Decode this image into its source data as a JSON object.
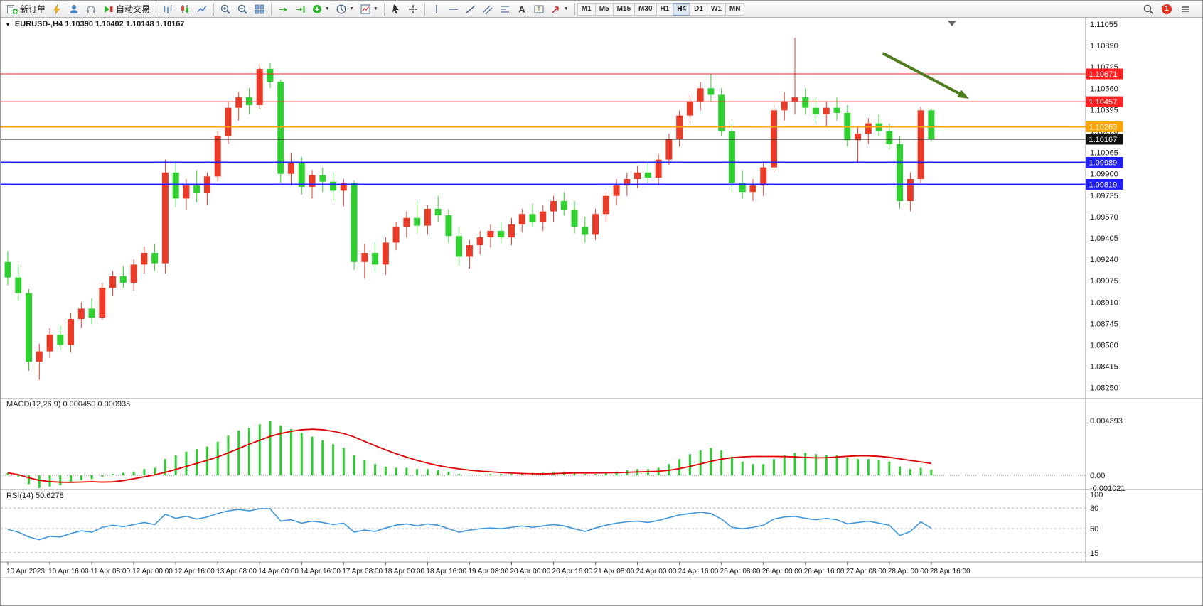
{
  "overlays": {
    "symbol_line": "EURUSD-,H4  1.10390 1.10402 1.10148 1.10167",
    "macd_line": "MACD(12,26,9) 0.000450 0.000935",
    "rsi_line": "RSI(14) 50.6278"
  },
  "toolbar": {
    "groups": [
      {
        "name": "trade",
        "buttons": [
          {
            "name": "new-order-button",
            "icon": "new-order-icon",
            "label": "新订单"
          },
          {
            "name": "gold-tool-button",
            "icon": "gold-icon"
          },
          {
            "name": "profile-button",
            "icon": "person-icon"
          },
          {
            "name": "support-button",
            "icon": "headset-icon"
          },
          {
            "name": "auto-trading-button",
            "icon": "autotrade-icon",
            "label": "自动交易"
          }
        ]
      },
      {
        "name": "chart-type",
        "buttons": [
          {
            "name": "bar-chart-button",
            "icon": "bars-icon"
          },
          {
            "name": "candlestick-chart-button",
            "icon": "candles-icon"
          },
          {
            "name": "line-chart-button",
            "icon": "linechart-icon"
          }
        ]
      },
      {
        "name": "zoom",
        "buttons": [
          {
            "name": "zoom-in-button",
            "icon": "zoom-in-icon"
          },
          {
            "name": "zoom-out-button",
            "icon": "zoom-out-icon"
          },
          {
            "name": "tile-windows-button",
            "icon": "tile-icon"
          }
        ]
      },
      {
        "name": "chart-tools",
        "buttons": [
          {
            "name": "auto-scroll-button",
            "icon": "autoscroll-icon"
          },
          {
            "name": "chart-shift-button",
            "icon": "shift-icon"
          },
          {
            "name": "indicators-button",
            "icon": "indicators-icon",
            "caret": true
          },
          {
            "name": "periods-button",
            "icon": "periods-icon",
            "caret": true
          },
          {
            "name": "templates-button",
            "icon": "templates-icon",
            "caret": true
          }
        ]
      },
      {
        "name": "pointer",
        "buttons": [
          {
            "name": "cursor-button",
            "icon": "cursor-icon"
          },
          {
            "name": "crosshair-button",
            "icon": "crosshair-icon"
          }
        ]
      },
      {
        "name": "objects",
        "buttons": [
          {
            "name": "vertical-line-button",
            "icon": "vline-icon"
          },
          {
            "name": "horizontal-line-button",
            "icon": "hline-icon"
          },
          {
            "name": "trendline-button",
            "icon": "trendline-icon"
          },
          {
            "name": "channel-button",
            "icon": "channel-icon"
          },
          {
            "name": "fibonacci-button",
            "icon": "fibo-icon"
          },
          {
            "name": "text-button",
            "icon": "text-icon"
          },
          {
            "name": "text-label-button",
            "icon": "label-icon"
          },
          {
            "name": "arrows-button",
            "icon": "arrows-icon",
            "caret": true
          }
        ]
      },
      {
        "name": "timeframes",
        "buttons": [
          {
            "name": "tf-m1",
            "label": "M1",
            "tf": true
          },
          {
            "name": "tf-m5",
            "label": "M5",
            "tf": true
          },
          {
            "name": "tf-m15",
            "label": "M15",
            "tf": true
          },
          {
            "name": "tf-m30",
            "label": "M30",
            "tf": true
          },
          {
            "name": "tf-h1",
            "label": "H1",
            "tf": true
          },
          {
            "name": "tf-h4",
            "label": "H4",
            "tf": true,
            "active": true
          },
          {
            "name": "tf-d1",
            "label": "D1",
            "tf": true
          },
          {
            "name": "tf-w1",
            "label": "W1",
            "tf": true
          },
          {
            "name": "tf-mn",
            "label": "MN",
            "tf": true
          }
        ]
      }
    ],
    "right_buttons": [
      {
        "name": "search-button",
        "icon": "search-icon"
      },
      {
        "name": "notification-badge",
        "badge": "1"
      },
      {
        "name": "menu-button",
        "icon": "menu-icon"
      }
    ]
  },
  "chart_data": {
    "type": "candlestick",
    "symbol": "EURUSD-",
    "period": "H4",
    "ohlc": {
      "open": 1.1039,
      "high": 1.10402,
      "low": 1.10148,
      "close": 1.10167
    },
    "colors": {
      "up": "#ea3b28",
      "down": "#30d030",
      "background": "#ffffff",
      "macd_hist": "#2ecc2e",
      "macd_signal": "#e00000",
      "rsi_line": "#3e96dd",
      "arrow": "#4e7d1d"
    },
    "price_axis": {
      "max": 1.11055,
      "min": 1.0825,
      "tick_step": 0.00165,
      "labels": [
        "1.11055",
        "1.10890",
        "1.10725",
        "1.10560",
        "1.10395",
        "1.10230",
        "1.10065",
        "1.09900",
        "1.09735",
        "1.09570",
        "1.09405",
        "1.09240",
        "1.09075",
        "1.08910",
        "1.08745",
        "1.08580",
        "1.08415",
        "1.08250"
      ]
    },
    "hlines": [
      {
        "label": "1.10671",
        "price": 1.10671,
        "color": "#ff2020",
        "width": 1
      },
      {
        "label": "1.10457",
        "price": 1.10457,
        "color": "#ff2020",
        "width": 1
      },
      {
        "label": "1.10263",
        "price": 1.10263,
        "color": "#ffa500",
        "width": 2
      },
      {
        "label": "1.10167",
        "price": 1.10167,
        "color": "#101010",
        "width": 1,
        "current": true
      },
      {
        "label": "1.09989",
        "price": 1.09989,
        "color": "#2020ff",
        "width": 2
      },
      {
        "label": "1.09819",
        "price": 1.09819,
        "color": "#2020ff",
        "width": 2
      }
    ],
    "arrow": {
      "from_bar": 83.4,
      "from_price": 1.1083,
      "to_bar": 91.6,
      "to_price": 1.1048,
      "color": "#4e7d1d",
      "width": 4
    },
    "candles": [
      [
        1.0922,
        1.093,
        1.0904,
        1.091
      ],
      [
        1.091,
        1.092,
        1.0892,
        1.0898
      ],
      [
        1.0898,
        1.0901,
        1.0838,
        1.0845
      ],
      [
        1.0845,
        1.0859,
        1.0831,
        1.0853
      ],
      [
        1.0853,
        1.0871,
        1.0848,
        1.0866
      ],
      [
        1.0866,
        1.0873,
        1.0854,
        1.0858
      ],
      [
        1.0858,
        1.0883,
        1.0852,
        1.0878
      ],
      [
        1.0878,
        1.0891,
        1.0871,
        1.0886
      ],
      [
        1.0886,
        1.0894,
        1.0874,
        1.0879
      ],
      [
        1.0879,
        1.0906,
        1.0877,
        1.0902
      ],
      [
        1.0902,
        1.0915,
        1.0896,
        1.0911
      ],
      [
        1.0911,
        1.0919,
        1.0902,
        1.0906
      ],
      [
        1.0906,
        1.0924,
        1.09,
        1.092
      ],
      [
        1.092,
        1.0934,
        1.0913,
        1.0929
      ],
      [
        1.0929,
        1.0936,
        1.0915,
        1.0921
      ],
      [
        1.0921,
        1.1001,
        1.0913,
        1.0991
      ],
      [
        1.0991,
        1.1,
        1.0964,
        1.0971
      ],
      [
        1.0971,
        1.0986,
        1.0962,
        1.0981
      ],
      [
        1.0981,
        1.0993,
        1.0968,
        1.0975
      ],
      [
        1.0975,
        1.0991,
        1.0966,
        1.0988
      ],
      [
        1.0988,
        1.1023,
        1.0984,
        1.1019
      ],
      [
        1.1019,
        1.1046,
        1.1013,
        1.1041
      ],
      [
        1.1041,
        1.1053,
        1.1031,
        1.1049
      ],
      [
        1.1049,
        1.1056,
        1.1036,
        1.1043
      ],
      [
        1.1043,
        1.1075,
        1.104,
        1.1071
      ],
      [
        1.1071,
        1.1076,
        1.1056,
        1.1061
      ],
      [
        1.1061,
        1.1063,
        1.0983,
        1.099
      ],
      [
        1.099,
        1.1006,
        1.0981,
        1.0999
      ],
      [
        1.0999,
        1.1003,
        1.0974,
        1.098
      ],
      [
        1.098,
        1.0993,
        1.0971,
        1.0989
      ],
      [
        1.0989,
        1.0995,
        1.0976,
        1.0984
      ],
      [
        1.0984,
        1.0991,
        1.0969,
        1.0977
      ],
      [
        1.0977,
        1.0986,
        1.0965,
        1.0983
      ],
      [
        1.0983,
        1.0985,
        1.0916,
        1.0922
      ],
      [
        1.0922,
        1.0936,
        1.0909,
        1.0929
      ],
      [
        1.0929,
        1.0937,
        1.0914,
        1.092
      ],
      [
        1.092,
        1.0941,
        1.0912,
        1.0937
      ],
      [
        1.0937,
        1.0953,
        1.0931,
        1.0949
      ],
      [
        1.0949,
        1.0961,
        1.0941,
        1.0956
      ],
      [
        1.0956,
        1.0969,
        1.0944,
        1.095
      ],
      [
        1.095,
        1.0966,
        1.0943,
        1.0963
      ],
      [
        1.0963,
        1.0973,
        1.0953,
        1.0958
      ],
      [
        1.0958,
        1.0963,
        1.0937,
        1.0942
      ],
      [
        1.0942,
        1.0949,
        1.0919,
        1.0926
      ],
      [
        1.0926,
        1.0939,
        1.0917,
        1.0935
      ],
      [
        1.0935,
        1.0946,
        1.0928,
        1.0941
      ],
      [
        1.0941,
        1.0951,
        1.0933,
        1.0946
      ],
      [
        1.0946,
        1.0953,
        1.0936,
        1.0941
      ],
      [
        1.0941,
        1.0956,
        1.0935,
        1.0951
      ],
      [
        1.0951,
        1.0963,
        1.0945,
        1.0959
      ],
      [
        1.0959,
        1.0967,
        1.0949,
        1.0953
      ],
      [
        1.0953,
        1.0966,
        1.0946,
        1.0961
      ],
      [
        1.0961,
        1.0973,
        1.0953,
        1.0969
      ],
      [
        1.0969,
        1.0976,
        1.0958,
        1.0962
      ],
      [
        1.0962,
        1.0969,
        1.0944,
        1.0949
      ],
      [
        1.0949,
        1.0957,
        1.0937,
        1.0943
      ],
      [
        1.0943,
        1.0963,
        1.0939,
        1.0959
      ],
      [
        1.0959,
        1.0976,
        1.0953,
        1.0973
      ],
      [
        1.0973,
        1.0986,
        1.0966,
        1.0981
      ],
      [
        1.0981,
        1.0991,
        1.0973,
        1.0986
      ],
      [
        1.0986,
        1.0996,
        1.0979,
        1.0991
      ],
      [
        1.0991,
        1.0999,
        1.0983,
        1.0987
      ],
      [
        1.0987,
        1.1005,
        1.0981,
        1.1001
      ],
      [
        1.1001,
        1.1021,
        1.0997,
        1.1017
      ],
      [
        1.1017,
        1.1039,
        1.1011,
        1.1035
      ],
      [
        1.1035,
        1.1051,
        1.1029,
        1.1046
      ],
      [
        1.1046,
        1.1061,
        1.1039,
        1.1056
      ],
      [
        1.1056,
        1.1067,
        1.1046,
        1.1051
      ],
      [
        1.1051,
        1.1056,
        1.1019,
        1.1023
      ],
      [
        1.1023,
        1.1029,
        1.0976,
        1.0983
      ],
      [
        1.0983,
        1.0993,
        1.0971,
        1.0976
      ],
      [
        1.0976,
        1.0986,
        1.0969,
        1.0981
      ],
      [
        1.0981,
        1.0999,
        1.0973,
        1.0995
      ],
      [
        1.0995,
        1.1043,
        1.0991,
        1.1039
      ],
      [
        1.1039,
        1.1053,
        1.1031,
        1.1046
      ],
      [
        1.1046,
        1.1095,
        1.1036,
        1.1049
      ],
      [
        1.1049,
        1.1056,
        1.1036,
        1.1041
      ],
      [
        1.1041,
        1.1049,
        1.1029,
        1.1036
      ],
      [
        1.1036,
        1.1046,
        1.1026,
        1.1041
      ],
      [
        1.1041,
        1.1049,
        1.1031,
        1.1037
      ],
      [
        1.1037,
        1.1043,
        1.1011,
        1.1016
      ],
      [
        1.1016,
        1.1026,
        1.0999,
        1.1021
      ],
      [
        1.1021,
        1.1033,
        1.1013,
        1.1029
      ],
      [
        1.1029,
        1.1036,
        1.1019,
        1.1023
      ],
      [
        1.1023,
        1.1029,
        1.1009,
        1.1013
      ],
      [
        1.1013,
        1.1019,
        1.0963,
        1.0969
      ],
      [
        1.0969,
        1.0991,
        1.0961,
        1.0986
      ],
      [
        1.0986,
        1.1042,
        1.0983,
        1.1039
      ],
      [
        1.1039,
        1.10402,
        1.10148,
        1.10167
      ]
    ],
    "time_labels": [
      {
        "bar": 0,
        "text": "10 Apr 2023"
      },
      {
        "bar": 4,
        "text": "10 Apr 16:00"
      },
      {
        "bar": 8,
        "text": "11 Apr 08:00"
      },
      {
        "bar": 12,
        "text": "12 Apr 00:00"
      },
      {
        "bar": 16,
        "text": "12 Apr 16:00"
      },
      {
        "bar": 20,
        "text": "13 Apr 08:00"
      },
      {
        "bar": 24,
        "text": "14 Apr 00:00"
      },
      {
        "bar": 28,
        "text": "14 Apr 16:00"
      },
      {
        "bar": 32,
        "text": "17 Apr 08:00"
      },
      {
        "bar": 36,
        "text": "18 Apr 00:00"
      },
      {
        "bar": 40,
        "text": "18 Apr 16:00"
      },
      {
        "bar": 44,
        "text": "19 Apr 08:00"
      },
      {
        "bar": 48,
        "text": "20 Apr 00:00"
      },
      {
        "bar": 52,
        "text": "20 Apr 16:00"
      },
      {
        "bar": 56,
        "text": "21 Apr 08:00"
      },
      {
        "bar": 60,
        "text": "24 Apr 00:00"
      },
      {
        "bar": 64,
        "text": "24 Apr 16:00"
      },
      {
        "bar": 68,
        "text": "25 Apr 08:00"
      },
      {
        "bar": 72,
        "text": "26 Apr 00:00"
      },
      {
        "bar": 76,
        "text": "26 Apr 16:00"
      },
      {
        "bar": 80,
        "text": "27 Apr 08:00"
      },
      {
        "bar": 84,
        "text": "28 Apr 00:00"
      },
      {
        "bar": 88,
        "text": "28 Apr 16:00"
      }
    ],
    "macd": {
      "label": "MACD(12,26,9)",
      "main_value": 0.00045,
      "signal_value": 0.000935,
      "scale_labels": [
        "0.004393",
        "0.00",
        "-0.001021"
      ],
      "max": 0.004393,
      "min": -0.001021,
      "hist": [
        0.0002,
        -0.0001,
        -0.0007,
        -0.00102,
        -0.0009,
        -0.0008,
        -0.0006,
        -0.0004,
        -0.0003,
        -0.0001,
        0.0001,
        0.0002,
        0.0003,
        0.0005,
        0.0006,
        0.0013,
        0.0016,
        0.0019,
        0.0021,
        0.0023,
        0.0027,
        0.0032,
        0.0036,
        0.0038,
        0.0041,
        0.004393,
        0.004,
        0.0037,
        0.0034,
        0.0031,
        0.0028,
        0.0025,
        0.0022,
        0.0016,
        0.0012,
        0.0009,
        0.0007,
        0.0006,
        0.0006,
        0.0005,
        0.0005,
        0.0004,
        0.0003,
        0.0001,
        0.0,
        0.0,
        0.0001,
        0.0001,
        0.0001,
        0.0002,
        0.0002,
        0.0002,
        0.0003,
        0.0003,
        0.0002,
        0.0001,
        0.0001,
        0.0002,
        0.0003,
        0.0004,
        0.0005,
        0.0005,
        0.0006,
        0.0009,
        0.0013,
        0.0017,
        0.002,
        0.0022,
        0.002,
        0.0015,
        0.0011,
        0.0009,
        0.0009,
        0.0013,
        0.0016,
        0.0018,
        0.0018,
        0.0017,
        0.0016,
        0.0016,
        0.0014,
        0.0013,
        0.0013,
        0.0012,
        0.0011,
        0.0007,
        0.0005,
        0.0006,
        0.00045
      ]
    },
    "rsi": {
      "label": "RSI(14)",
      "value": 50.6278,
      "levels": [
        80,
        50,
        15
      ],
      "scale_labels": [
        "100",
        "80",
        "50",
        "15"
      ],
      "series": [
        49,
        45,
        38,
        34,
        39,
        38,
        43,
        47,
        45,
        52,
        55,
        53,
        56,
        59,
        56,
        71,
        65,
        68,
        64,
        67,
        72,
        76,
        78,
        76,
        79,
        79,
        61,
        63,
        58,
        61,
        59,
        56,
        58,
        45,
        48,
        46,
        51,
        55,
        57,
        54,
        57,
        55,
        50,
        45,
        48,
        50,
        51,
        50,
        52,
        54,
        52,
        54,
        56,
        54,
        50,
        46,
        51,
        55,
        58,
        60,
        61,
        59,
        62,
        66,
        70,
        72,
        74,
        72,
        64,
        52,
        50,
        52,
        55,
        64,
        67,
        68,
        65,
        63,
        65,
        63,
        57,
        59,
        61,
        58,
        55,
        40,
        46,
        60,
        50.63
      ]
    }
  }
}
